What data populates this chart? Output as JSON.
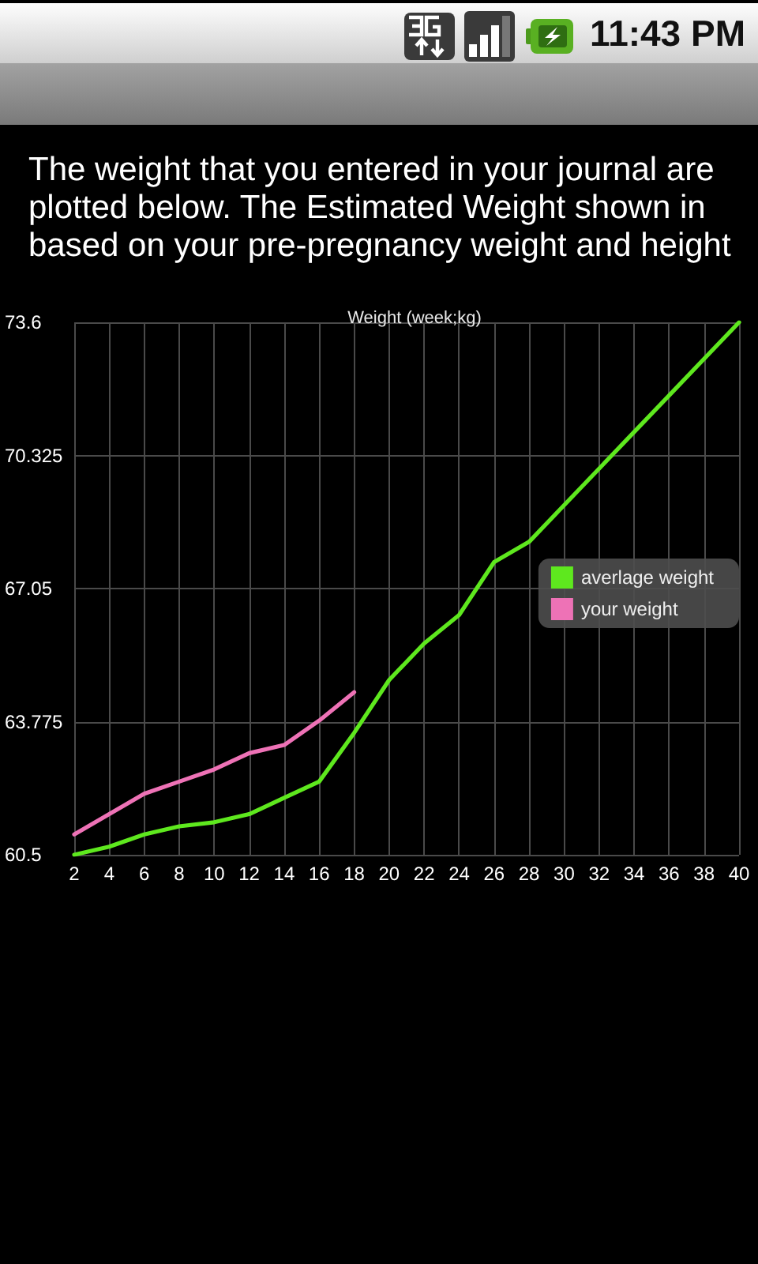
{
  "chart_data": {
    "type": "line",
    "title": "Weight (week;kg)",
    "subtitle": "The weight that you entered in your journal are plotted below. The Estimated Weight shown in based on your pre-pregnancy weight and height",
    "annotations": [
      "11:43 PM"
    ],
    "x": [
      2,
      4,
      6,
      8,
      10,
      12,
      14,
      16,
      18,
      20,
      22,
      24,
      26,
      28,
      30,
      32,
      34,
      36,
      38,
      40
    ],
    "series": [
      {
        "name": "averlage weight",
        "color": "#5ee81e",
        "values": [
          60.5,
          60.7,
          61.0,
          61.2,
          61.3,
          61.5,
          61.9,
          62.3,
          63.5,
          64.8,
          65.7,
          66.4,
          67.7,
          68.2,
          69.1,
          70.0,
          70.9,
          71.8,
          72.7,
          73.6
        ]
      },
      {
        "name": "your weight",
        "color": "#ee72b6",
        "x": [
          2,
          4,
          6,
          8,
          10,
          12,
          14,
          16,
          18
        ],
        "values": [
          61.0,
          61.5,
          62.0,
          62.3,
          62.6,
          63.0,
          63.2,
          63.8,
          64.5
        ]
      }
    ],
    "xlim": [
      2,
      40
    ],
    "xticks": [
      2,
      4,
      6,
      8,
      10,
      12,
      14,
      16,
      18,
      20,
      22,
      24,
      26,
      28,
      30,
      32,
      34,
      36,
      38,
      40
    ],
    "ylim": [
      60.5,
      73.6
    ],
    "yticks": [
      60.5,
      63.775,
      67.05,
      70.325,
      73.6
    ],
    "grid": true,
    "legend": "right",
    "marker": "none",
    "line_style": "solid"
  }
}
